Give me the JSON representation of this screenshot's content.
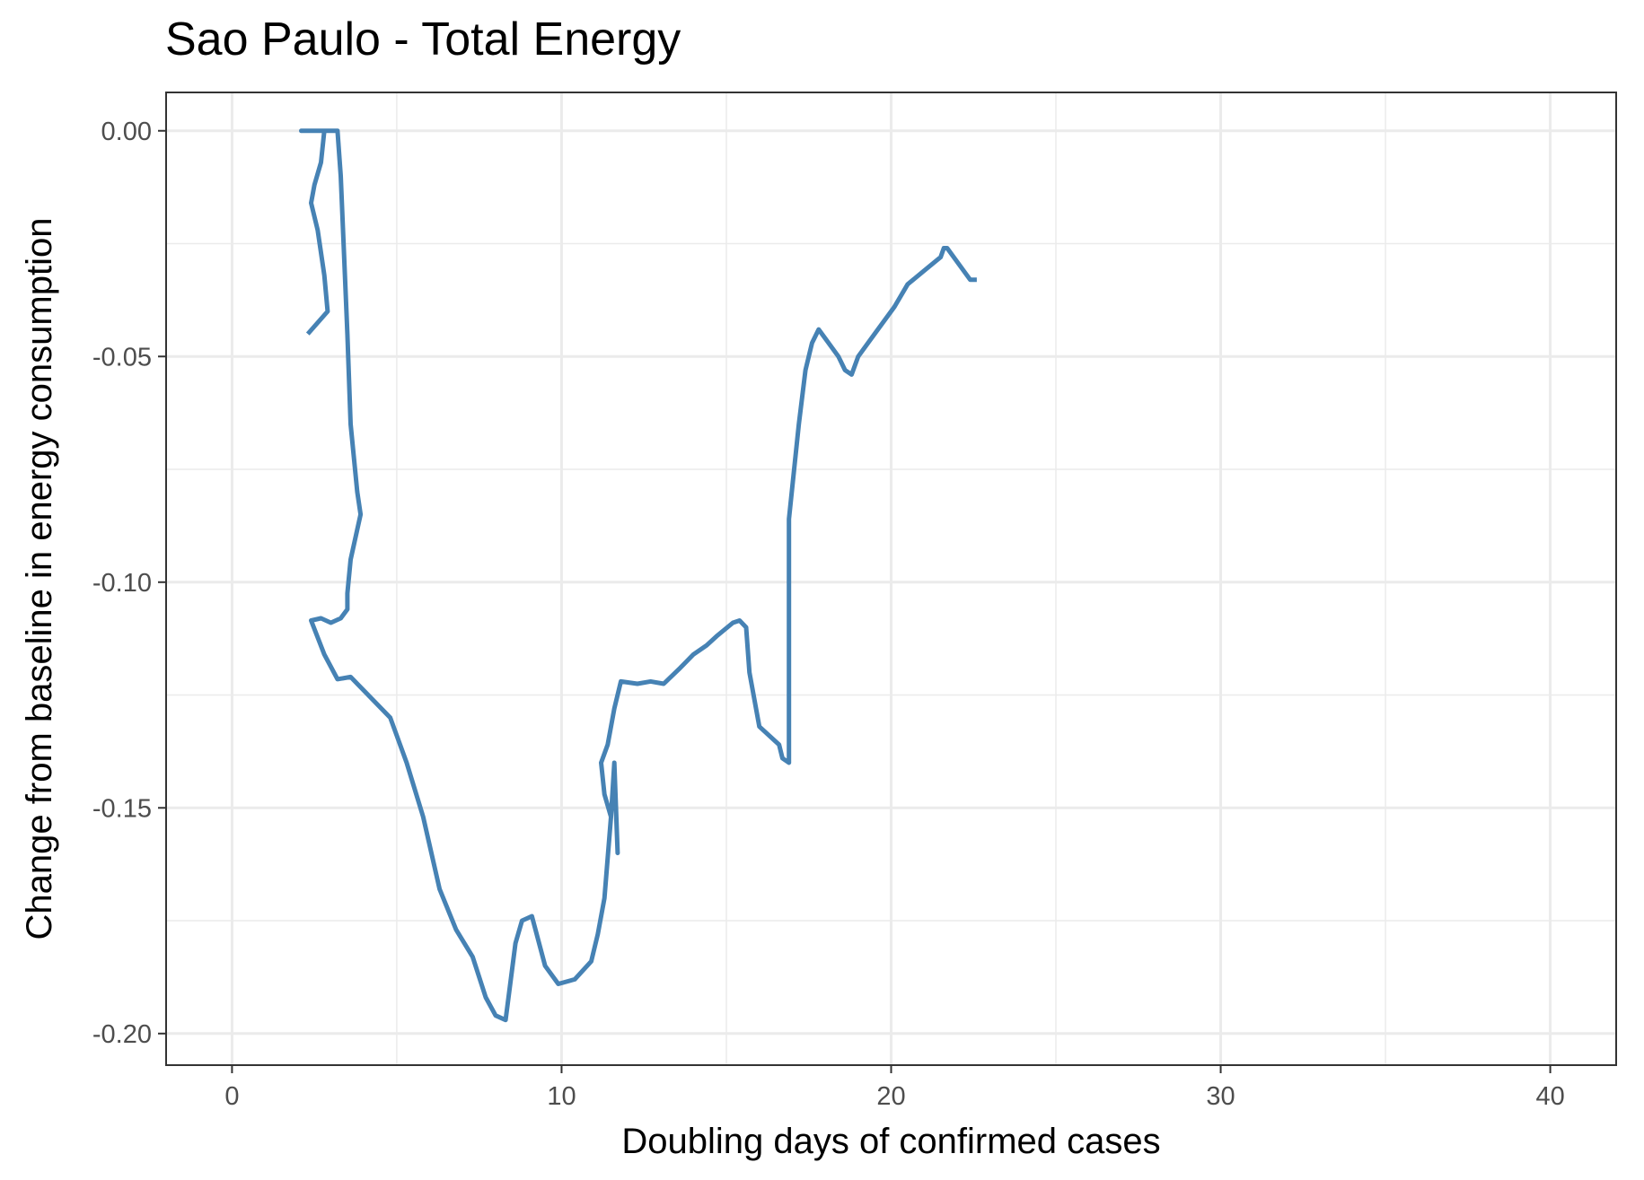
{
  "chart_data": {
    "type": "line",
    "title": "Sao Paulo - Total Energy",
    "xlabel": "Doubling days of confirmed cases",
    "ylabel": "Change from baseline in energy consumption",
    "xlim": [
      -2,
      42
    ],
    "ylim": [
      -0.207,
      0.0085
    ],
    "x_ticks": [
      0,
      10,
      20,
      30,
      40
    ],
    "x_tick_labels": [
      "0",
      "10",
      "20",
      "30",
      "40"
    ],
    "y_ticks": [
      0.0,
      -0.05,
      -0.1,
      -0.15,
      -0.2
    ],
    "y_tick_labels": [
      "0.00",
      "-0.05",
      "-0.10",
      "-0.15",
      "-0.20"
    ],
    "grid": true,
    "colors": {
      "line": "#4682b4",
      "grid": "#ebebeb",
      "panel_border": "#333333"
    },
    "series": [
      {
        "x": [
          2.3,
          2.9,
          2.8,
          2.6,
          2.4,
          2.5,
          2.7,
          2.8,
          2.9,
          2.9,
          2.1,
          2.5,
          3.2,
          3.3,
          3.5,
          3.6,
          3.8,
          3.9,
          3.6,
          3.5,
          3.5,
          3.3,
          3.0,
          2.7,
          2.4,
          2.8,
          3.2,
          3.6,
          4.0,
          4.8,
          5.3,
          5.8,
          6.3,
          6.8,
          7.3,
          7.7,
          8.0,
          8.3,
          8.6,
          8.8,
          9.1,
          9.5,
          9.9,
          10.4,
          10.9,
          11.1,
          11.3,
          11.5,
          11.6,
          11.6,
          11.7,
          11.6,
          11.5,
          11.3,
          11.2,
          11.4,
          11.6,
          11.8,
          12.3,
          12.7,
          13.1,
          13.6,
          14.0,
          14.4,
          14.7,
          15.2,
          15.4,
          15.6,
          15.7,
          16.0,
          16.6,
          16.7,
          16.9,
          16.9,
          16.9,
          16.9,
          17.2,
          17.4,
          17.6,
          17.8,
          18.0,
          18.4,
          18.6,
          18.8,
          19.0,
          19.5,
          20.1,
          20.5,
          21.0,
          21.5,
          21.6,
          21.7,
          22.1,
          22.4,
          22.6
        ],
        "y": [
          -0.045,
          -0.04,
          -0.032,
          -0.022,
          -0.016,
          -0.012,
          -0.007,
          0.0,
          0.0,
          0.0,
          0.0,
          0.0,
          0.0,
          -0.01,
          -0.045,
          -0.065,
          -0.08,
          -0.085,
          -0.095,
          -0.1025,
          -0.106,
          -0.108,
          -0.109,
          -0.108,
          -0.1085,
          -0.116,
          -0.1215,
          -0.121,
          -0.124,
          -0.13,
          -0.14,
          -0.152,
          -0.168,
          -0.177,
          -0.183,
          -0.192,
          -0.196,
          -0.197,
          -0.18,
          -0.175,
          -0.174,
          -0.185,
          -0.189,
          -0.188,
          -0.184,
          -0.178,
          -0.17,
          -0.152,
          -0.142,
          -0.141,
          -0.16,
          -0.14,
          -0.152,
          -0.147,
          -0.14,
          -0.136,
          -0.128,
          -0.122,
          -0.1225,
          -0.122,
          -0.1225,
          -0.119,
          -0.116,
          -0.114,
          -0.112,
          -0.109,
          -0.1085,
          -0.11,
          -0.12,
          -0.132,
          -0.136,
          -0.139,
          -0.14,
          -0.138,
          -0.12,
          -0.086,
          -0.065,
          -0.053,
          -0.047,
          -0.044,
          -0.046,
          -0.05,
          -0.053,
          -0.054,
          -0.05,
          -0.045,
          -0.039,
          -0.034,
          -0.031,
          -0.028,
          -0.026,
          -0.026,
          -0.03,
          -0.033,
          -0.033
        ]
      }
    ]
  }
}
